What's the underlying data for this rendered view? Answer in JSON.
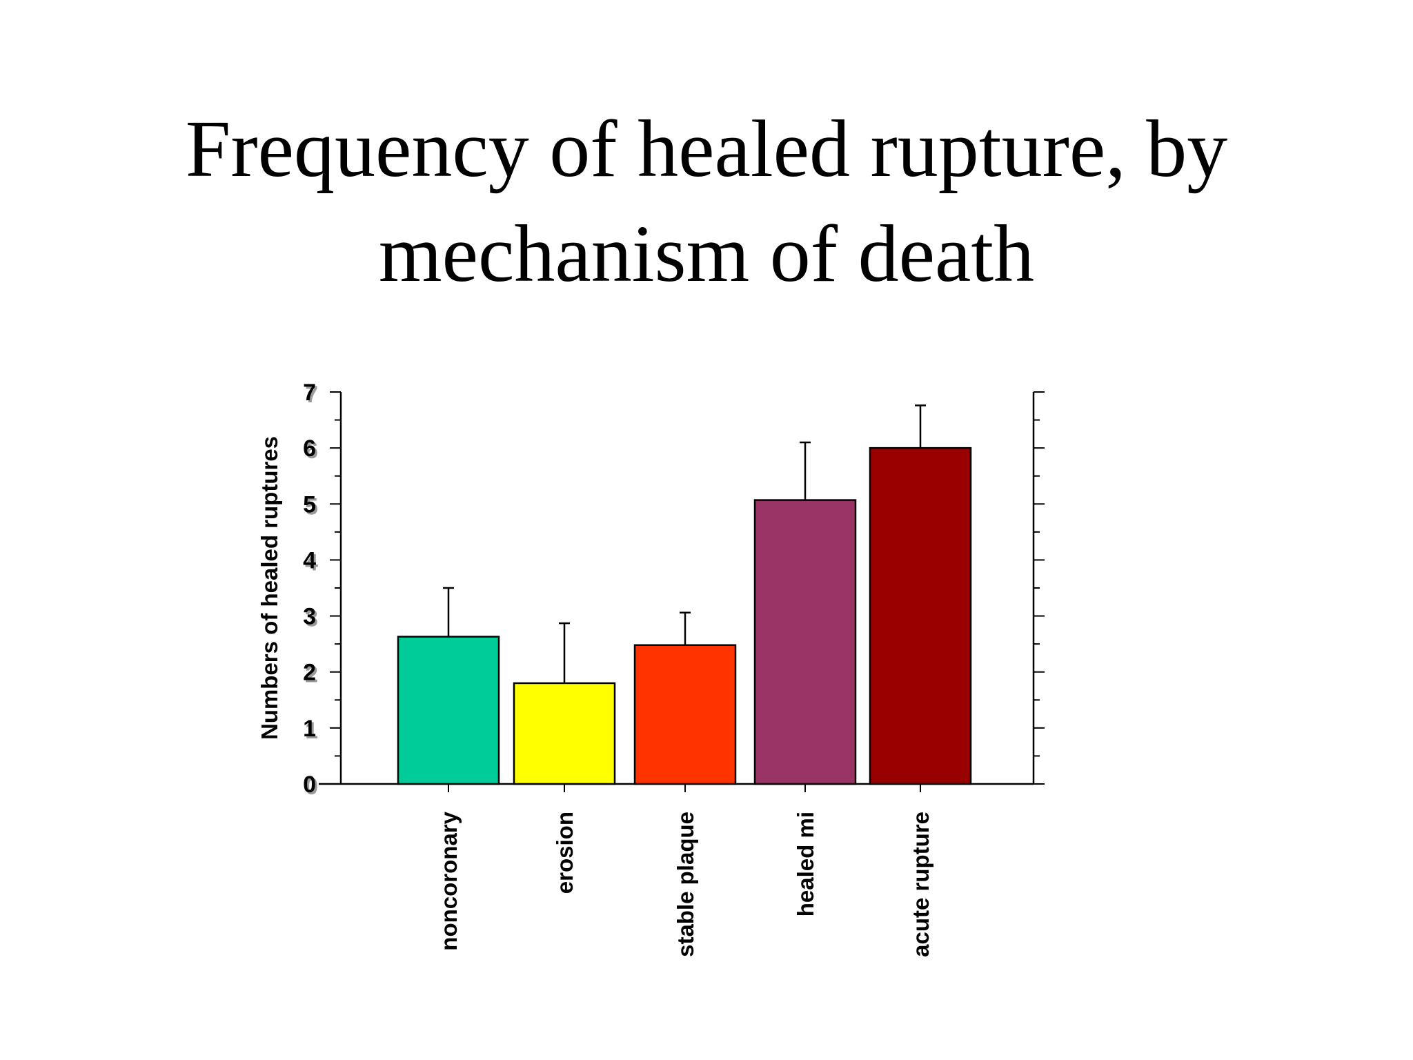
{
  "slide": {
    "title_line1": "Frequency of healed rupture, by",
    "title_line2": "mechanism of death"
  },
  "chart_data": {
    "type": "bar",
    "categories": [
      "noncoronary",
      "erosion",
      "stable plaque",
      "healed mi",
      "acute rupture"
    ],
    "values": [
      2.63,
      1.8,
      2.48,
      5.07,
      6.0
    ],
    "error_upper": [
      3.5,
      2.87,
      3.06,
      6.1,
      6.76
    ],
    "colors": [
      "#00CC99",
      "#FFFF00",
      "#FF3300",
      "#993366",
      "#990000"
    ],
    "ylabel": "Numbers of healed ruptures",
    "xlabel": "",
    "ylim": [
      0,
      7
    ],
    "yticks": [
      0,
      1,
      2,
      3,
      4,
      5,
      6,
      7
    ],
    "grid": false,
    "legend": "none"
  }
}
